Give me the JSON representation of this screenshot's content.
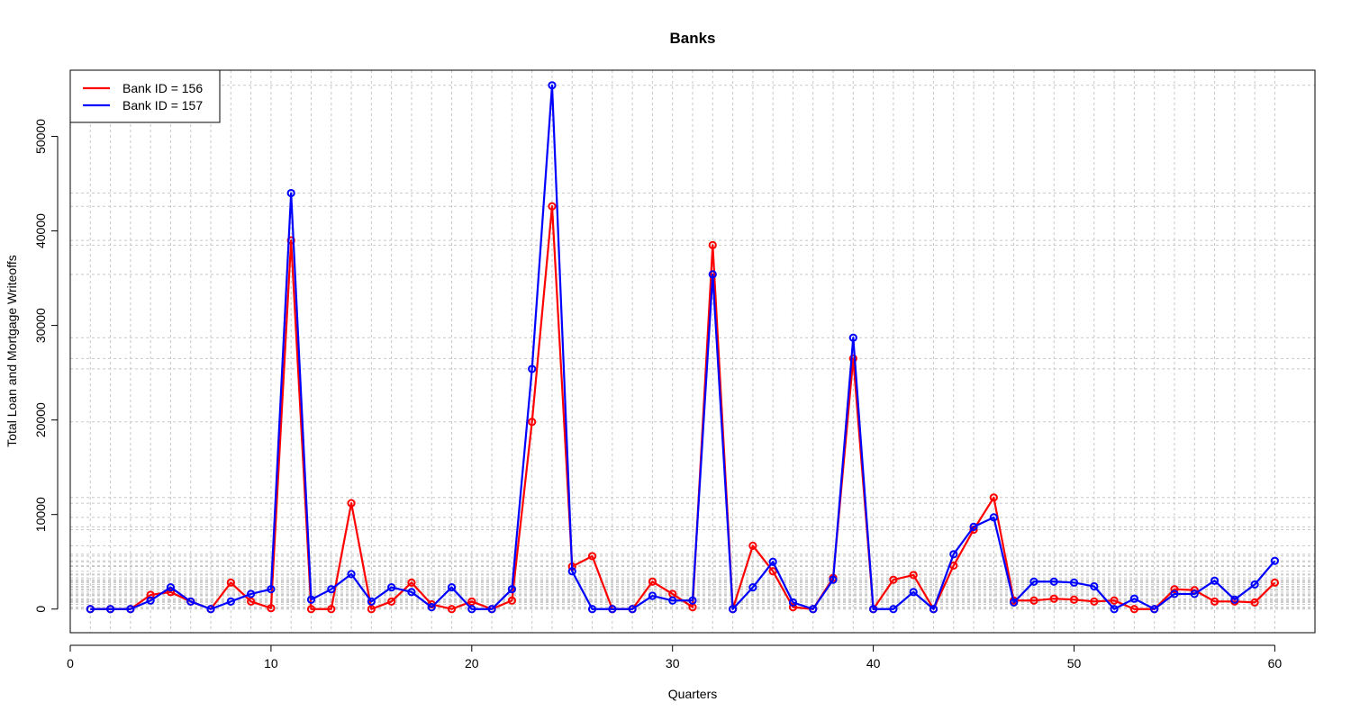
{
  "chart_data": {
    "type": "line",
    "title": "Banks",
    "xlabel": "Quarters",
    "ylabel": "Total Loan and Mortgage Writeoffs",
    "xlim": [
      0,
      62
    ],
    "ylim": [
      -2500,
      57000
    ],
    "x_ticks": [
      0,
      10,
      20,
      30,
      40,
      50,
      60
    ],
    "y_ticks": [
      0,
      10000,
      20000,
      30000,
      40000,
      50000
    ],
    "grid": true,
    "legend_position": "top-left",
    "x": [
      1,
      2,
      3,
      4,
      5,
      6,
      7,
      8,
      9,
      10,
      11,
      12,
      13,
      14,
      15,
      16,
      17,
      18,
      19,
      20,
      21,
      22,
      23,
      24,
      25,
      26,
      27,
      28,
      29,
      30,
      31,
      32,
      33,
      34,
      35,
      36,
      37,
      38,
      39,
      40,
      41,
      42,
      43,
      44,
      45,
      46,
      47,
      48,
      49,
      50,
      51,
      52,
      53,
      54,
      55,
      56,
      57,
      58,
      59,
      60
    ],
    "series": [
      {
        "name": "Bank ID = 156",
        "color": "#ff0000",
        "values": [
          0,
          0,
          0,
          1500,
          1800,
          800,
          0,
          2800,
          800,
          100,
          39000,
          0,
          0,
          11200,
          0,
          800,
          2800,
          500,
          0,
          800,
          0,
          900,
          19800,
          42600,
          4500,
          5600,
          0,
          0,
          2900,
          1600,
          200,
          38500,
          0,
          6700,
          4000,
          200,
          0,
          3300,
          26500,
          0,
          3100,
          3600,
          0,
          4600,
          8400,
          11800,
          900,
          900,
          1100,
          1000,
          800,
          900,
          0,
          0,
          2100,
          2000,
          800,
          800,
          700,
          2800
        ]
      },
      {
        "name": "Bank ID = 157",
        "color": "#0000ff",
        "values": [
          0,
          0,
          0,
          900,
          2300,
          800,
          0,
          800,
          1600,
          2100,
          44000,
          1000,
          2100,
          3700,
          800,
          2300,
          1800,
          200,
          2300,
          0,
          0,
          2100,
          25400,
          55400,
          4000,
          0,
          0,
          0,
          1400,
          900,
          900,
          35400,
          0,
          2300,
          5000,
          700,
          0,
          3100,
          28700,
          0,
          0,
          1800,
          0,
          5800,
          8700,
          9700,
          700,
          2900,
          2900,
          2800,
          2400,
          0,
          1100,
          0,
          1600,
          1600,
          3000,
          1000,
          2600,
          5100
        ]
      }
    ]
  }
}
